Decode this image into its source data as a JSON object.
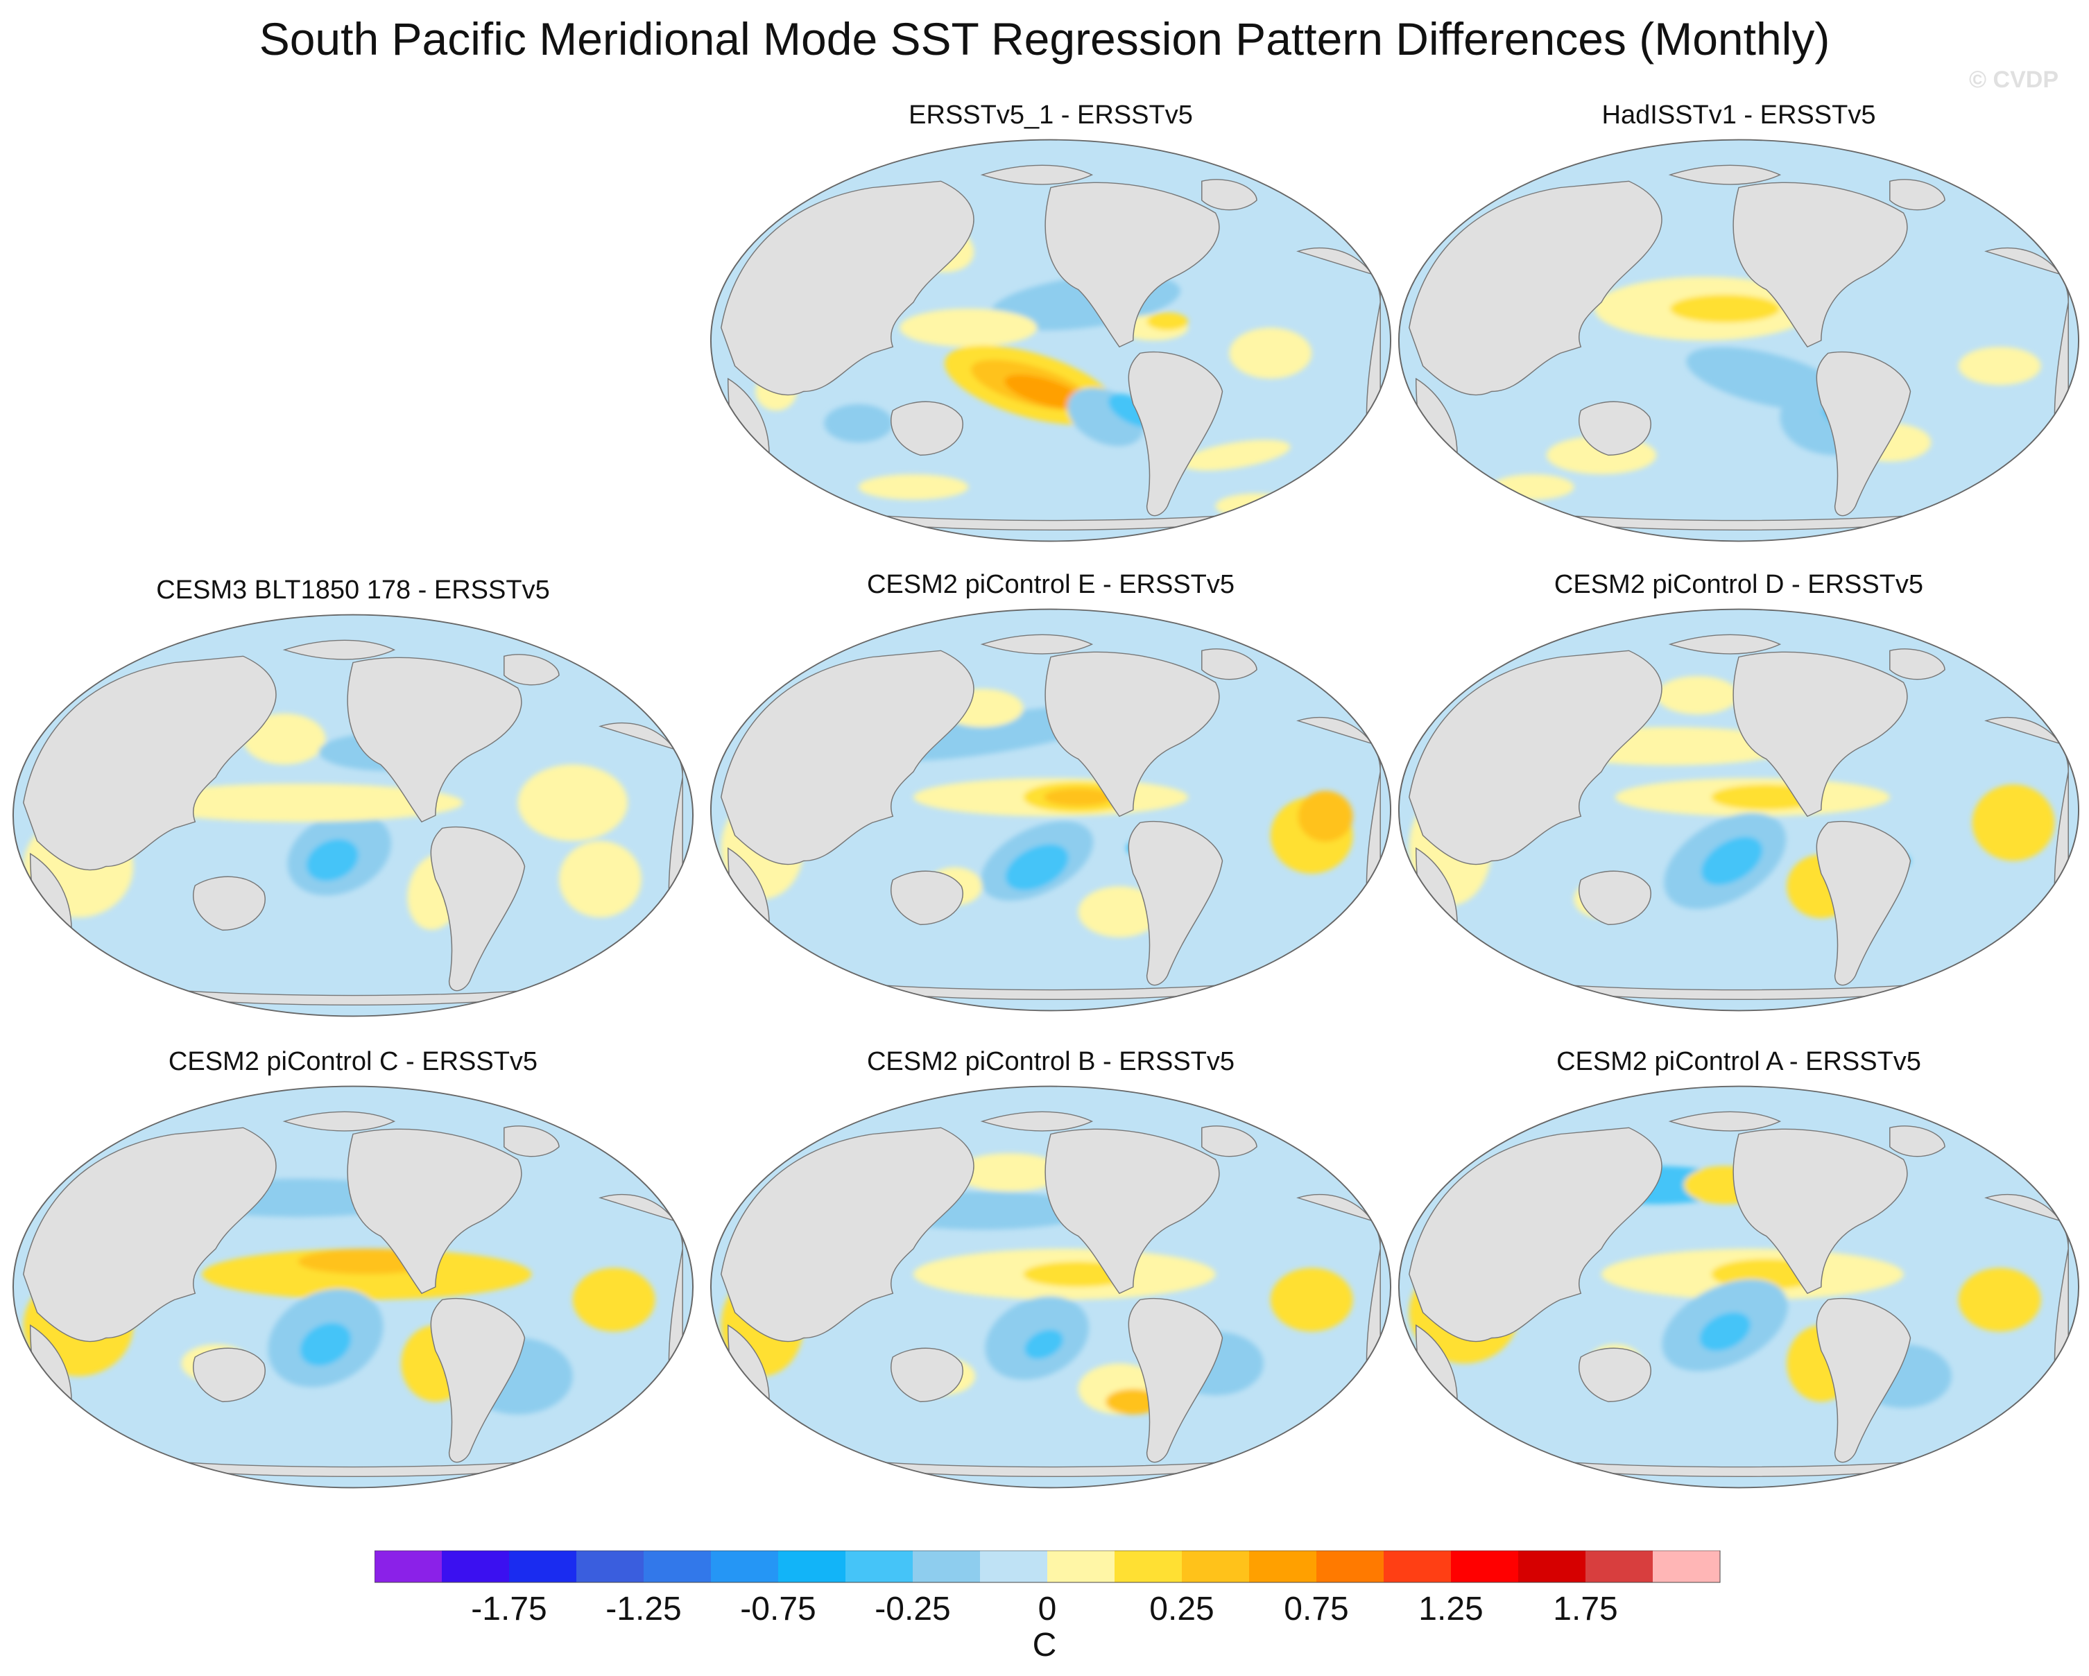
{
  "title": "South Pacific Meridional Mode SST Regression Pattern Differences (Monthly)",
  "watermark": "© CVDP",
  "panels": [
    {
      "id": "p1",
      "title": "ERSSTv5_1 - ERSSTv5"
    },
    {
      "id": "p2",
      "title": "HadISSTv1 - ERSSTv5"
    },
    {
      "id": "p3",
      "title": "CESM3 BLT1850 178 - ERSSTv5"
    },
    {
      "id": "p4",
      "title": "CESM2 piControl E - ERSSTv5"
    },
    {
      "id": "p5",
      "title": "CESM2 piControl D - ERSSTv5"
    },
    {
      "id": "p6",
      "title": "CESM2 piControl C - ERSSTv5"
    },
    {
      "id": "p7",
      "title": "CESM2 piControl B - ERSSTv5"
    },
    {
      "id": "p8",
      "title": "CESM2 piControl A - ERSSTv5"
    }
  ],
  "colorbar": {
    "units": "C",
    "colors": [
      "#8b21e8",
      "#3b10f0",
      "#1a2cf0",
      "#3a5ede",
      "#3278ea",
      "#2596f5",
      "#12b4f8",
      "#45c4f8",
      "#8ecdee",
      "#bfe2f5",
      "#fff6a6",
      "#ffe033",
      "#ffc21a",
      "#ffa000",
      "#ff7a00",
      "#ff3f14",
      "#ff0000",
      "#d60000",
      "#d83e3e",
      "#ffb6b6"
    ],
    "labels": [
      "-1.75",
      "-1.25",
      "-0.75",
      "-0.25",
      "0",
      "0.25",
      "0.75",
      "1.25",
      "1.75"
    ]
  },
  "map_data": {
    "projection": "robinson-like",
    "land_color": "#e0e0e0",
    "ocean_background": "#bfe2f5"
  }
}
